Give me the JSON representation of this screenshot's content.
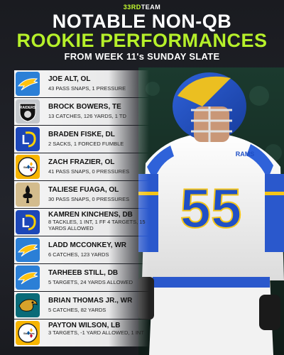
{
  "header": {
    "brand_prefix": "33RD",
    "brand_suffix": "TEAM",
    "title_line1": "NOTABLE NON-QB",
    "title_line2": "ROOKIE PERFORMANCES",
    "subtitle": "FROM WEEK 11's SUNDAY SLATE"
  },
  "colors": {
    "accent": "#b6f02a",
    "background": "#1c1d22"
  },
  "jersey": {
    "number": "55",
    "team_wordmark": "RAMS"
  },
  "players": [
    {
      "team_logo": "chargers-logo",
      "name": "JOE ALT, OL",
      "stat": "43 PASS SNAPS, 1 PRESSURE"
    },
    {
      "team_logo": "raiders-logo",
      "name": "BROCK BOWERS, TE",
      "stat": "13 CATCHES, 126 YARDS, 1 TD"
    },
    {
      "team_logo": "rams-logo",
      "name": "BRADEN FISKE, DL",
      "stat": "2 SACKS, 1 FORCED FUMBLE"
    },
    {
      "team_logo": "steelers-logo",
      "name": "ZACH FRAZIER, OL",
      "stat": "41 PASS SNAPS, 0 PRESSURES"
    },
    {
      "team_logo": "saints-logo",
      "name": "TALIESE FUAGA, OL",
      "stat": "30 PASS SNAPS, 0 PRESSURES"
    },
    {
      "team_logo": "rams-logo",
      "name": "KAMREN KINCHENS, DB",
      "stat": "8 TACKLES, 1 INT, 1 FF 4 TARGETS, 15 YARDS ALLOWED"
    },
    {
      "team_logo": "chargers-logo",
      "name": "LADD MCCONKEY, WR",
      "stat": "6 CATCHES, 123 YARDS"
    },
    {
      "team_logo": "chargers-logo",
      "name": "TARHEEB STILL, DB",
      "stat": "5 TARGETS, 24 YARDS ALLOWED"
    },
    {
      "team_logo": "jaguars-logo",
      "name": "BRIAN THOMAS JR., WR",
      "stat": "5 CATCHES, 82 YARDS"
    },
    {
      "team_logo": "steelers-logo",
      "name": "PAYTON WILSON, LB",
      "stat": "3 TARGETS, -1 YARD ALLOWED, 1 INT"
    }
  ]
}
